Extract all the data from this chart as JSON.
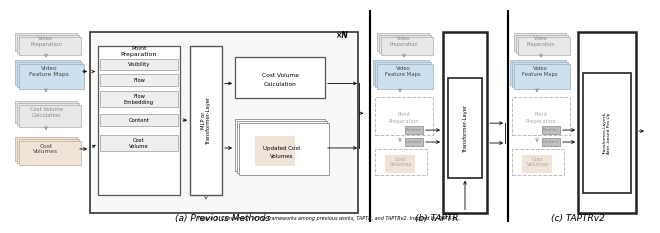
{
  "title": "Figure 1: Comparison of the frameworks among previous works, TAPTR, and TAPTRv2. Inspired by DETR-b...",
  "subfig_a_label": "(a) Previous Methods",
  "subfig_b_label": "(b) TAPTR",
  "subfig_c_label": "(c) TAPTRv2",
  "bg_color": "#ffffff",
  "sep_line_color": "#000000",
  "dashed_gray": "#aaaaaa",
  "stacked_light": "#e8e8e8",
  "stacked_blue": "#c8d8e8",
  "stacked_orange": "#f0e0d0"
}
